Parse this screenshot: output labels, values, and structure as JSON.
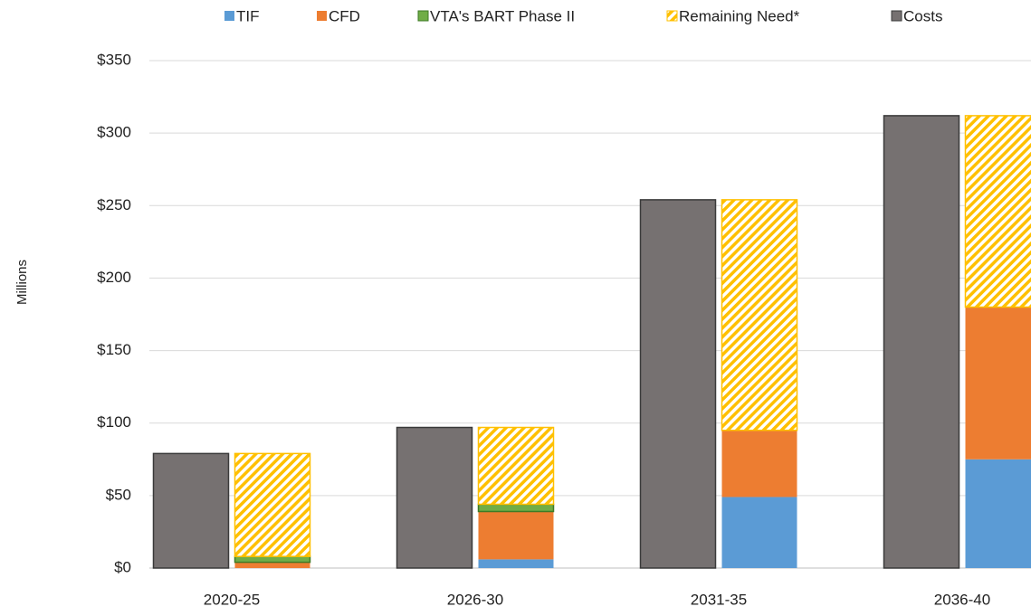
{
  "chart_data": {
    "type": "bar",
    "y_label": "Millions",
    "categories": [
      "2020-25",
      "2026-30",
      "2031-35",
      "2036-40"
    ],
    "series": [
      {
        "name": "TIF",
        "color": "#5b9bd5",
        "stack": 1,
        "values": [
          0,
          6,
          49,
          75
        ]
      },
      {
        "name": "CFD",
        "color": "#ed7d31",
        "stack": 1,
        "values": [
          4,
          33,
          46,
          105
        ]
      },
      {
        "name": "VTA's BART Phase II",
        "color": "#70ad47",
        "border": "#3e7a26",
        "stack": 1,
        "values": [
          4,
          5,
          0,
          0
        ]
      },
      {
        "name": "Remaining Need*",
        "color": "#ffc000",
        "pattern": "hatch",
        "stack": 1,
        "values": [
          71,
          53,
          159,
          132
        ]
      },
      {
        "name": "Costs",
        "color": "#767171",
        "border": "#3a3a3a",
        "stack": 0,
        "values": [
          79,
          97,
          254,
          312
        ]
      }
    ],
    "ylim": [
      0,
      350
    ],
    "yticks": [
      {
        "value": 0,
        "label": "$0"
      },
      {
        "value": 50,
        "label": "$50"
      },
      {
        "value": 100,
        "label": "$100"
      },
      {
        "value": 150,
        "label": "$150"
      },
      {
        "value": 200,
        "label": "$200"
      },
      {
        "value": 250,
        "label": "$250"
      },
      {
        "value": 300,
        "label": "$300"
      },
      {
        "value": 350,
        "label": "$350"
      }
    ],
    "grid": true,
    "legend": "top"
  }
}
